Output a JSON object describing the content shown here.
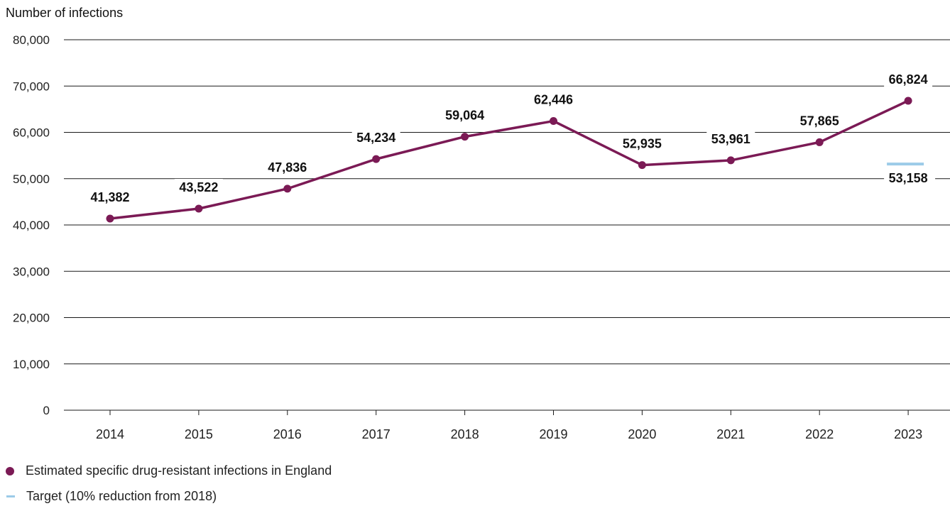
{
  "chart_data": {
    "type": "line",
    "ylabel": "Number of infections",
    "xlabel": "",
    "ylim": [
      0,
      80000
    ],
    "yticks": [
      0,
      10000,
      20000,
      30000,
      40000,
      50000,
      60000,
      70000,
      80000
    ],
    "ytick_labels": [
      "0",
      "10,000",
      "20,000",
      "30,000",
      "40,000",
      "50,000",
      "60,000",
      "70,000",
      "80,000"
    ],
    "categories": [
      "2014",
      "2015",
      "2016",
      "2017",
      "2018",
      "2019",
      "2020",
      "2021",
      "2022",
      "2023"
    ],
    "grid": "horizontal",
    "legend_placement": "bottom-left",
    "series": [
      {
        "name": "Estimated specific drug-resistant infections in England",
        "values": [
          41382,
          43522,
          47836,
          54234,
          59064,
          62446,
          52935,
          53961,
          57865,
          66824
        ],
        "labels": [
          "41,382",
          "43,522",
          "47,836",
          "54,234",
          "59,064",
          "62,446",
          "52,935",
          "53,961",
          "57,865",
          "66,824"
        ],
        "color": "#7b1a55"
      }
    ],
    "target": {
      "name": "Target (10% reduction from 2018)",
      "category": "2023",
      "value": 53158,
      "label": "53,158",
      "color": "#9ccbe8"
    }
  }
}
